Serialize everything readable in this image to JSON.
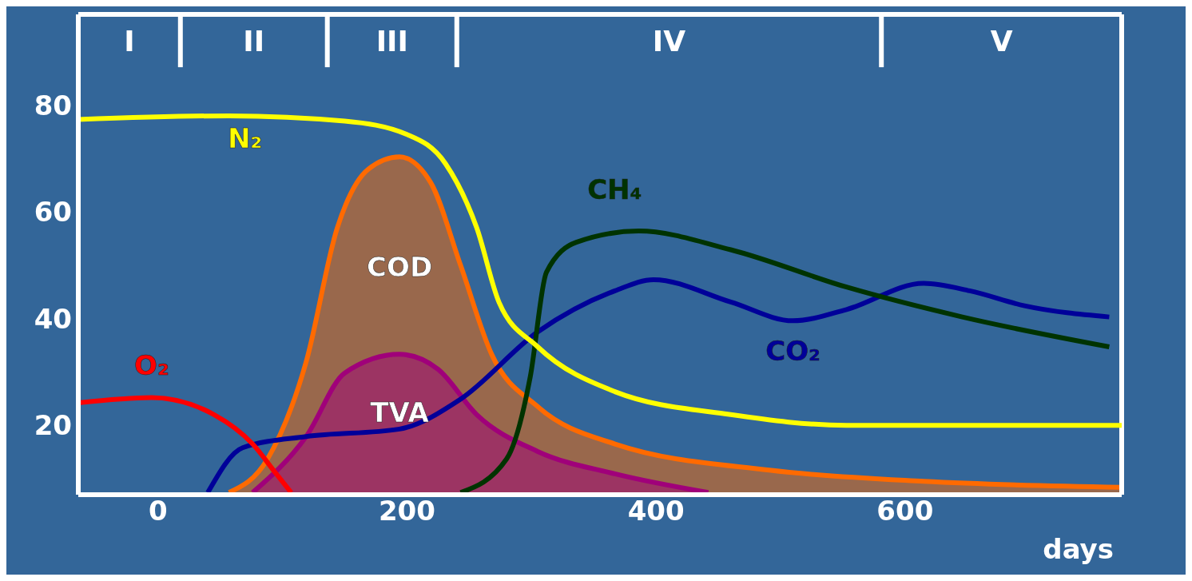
{
  "chart_data": {
    "type": "line",
    "xlabel": "days",
    "xlim": [
      -64,
      774
    ],
    "ylim": [
      7,
      97
    ],
    "xticks": [
      0,
      200,
      400,
      600
    ],
    "yticks": [
      20,
      40,
      60,
      80
    ],
    "grid": false,
    "legend": false,
    "marker": "none",
    "ref_lines": [
      {
        "axis": "x",
        "value": 18,
        "color": "#ffffff"
      },
      {
        "axis": "x",
        "value": 136,
        "color": "#ffffff"
      },
      {
        "axis": "x",
        "value": 240,
        "color": "#ffffff"
      },
      {
        "axis": "x",
        "value": 581,
        "color": "#ffffff"
      }
    ],
    "annotations": [
      "I",
      "II",
      "III",
      "IV",
      "V"
    ],
    "series": [
      {
        "name": "CO₂",
        "color": "#000099",
        "x": [
          40,
          68,
          119,
          194,
          243,
          305,
          367,
          398,
          460,
          510,
          553,
          615,
          652,
          696,
          764
        ],
        "values": [
          7.4,
          15.8,
          17.9,
          19.3,
          24.9,
          37.5,
          45.2,
          47.3,
          43.1,
          39.6,
          41.7,
          46.6,
          45.2,
          42.4,
          40.3
        ]
      },
      {
        "name": "CH₄",
        "color": "#003300",
        "x": [
          243,
          280,
          299,
          312,
          336,
          386,
          460,
          553,
          646,
          764
        ],
        "values": [
          7.4,
          13.7,
          29.1,
          48.7,
          54.3,
          56.4,
          52.9,
          45.9,
          40.3,
          34.7
        ]
      },
      {
        "name": "COD",
        "type": "area",
        "color": "#ff6a00",
        "x": [
          57,
          88,
          119,
          144,
          169,
          194,
          219,
          243,
          268,
          305,
          367,
          491,
          615,
          774
        ],
        "values": [
          7.4,
          13.7,
          31.9,
          57,
          68,
          70.3,
          65.5,
          50,
          33.3,
          23.5,
          16.5,
          11.6,
          9.5,
          8.4
        ]
      },
      {
        "name": "TVA",
        "type": "area",
        "color": "#a0007a",
        "x": [
          76,
          119,
          150,
          194,
          225,
          256,
          305,
          367,
          442
        ],
        "values": [
          7.4,
          17.9,
          29.8,
          33.3,
          30.5,
          22,
          15.1,
          10.9,
          7.4
        ]
      },
      {
        "name": "N₂",
        "color": "#ffff00",
        "x": [
          -64,
          57,
          150,
          200,
          231,
          256,
          274,
          305,
          367,
          460,
          553,
          774
        ],
        "values": [
          77.3,
          78,
          77,
          74.5,
          69,
          57,
          43,
          34.7,
          26.3,
          22,
          20,
          20
        ]
      },
      {
        "name": "O₂",
        "color": "#ff0000",
        "x": [
          -64,
          -5,
          45,
          76,
          95,
          107
        ],
        "values": [
          24.2,
          25.2,
          22,
          16.5,
          10.9,
          7.4
        ]
      }
    ]
  }
}
